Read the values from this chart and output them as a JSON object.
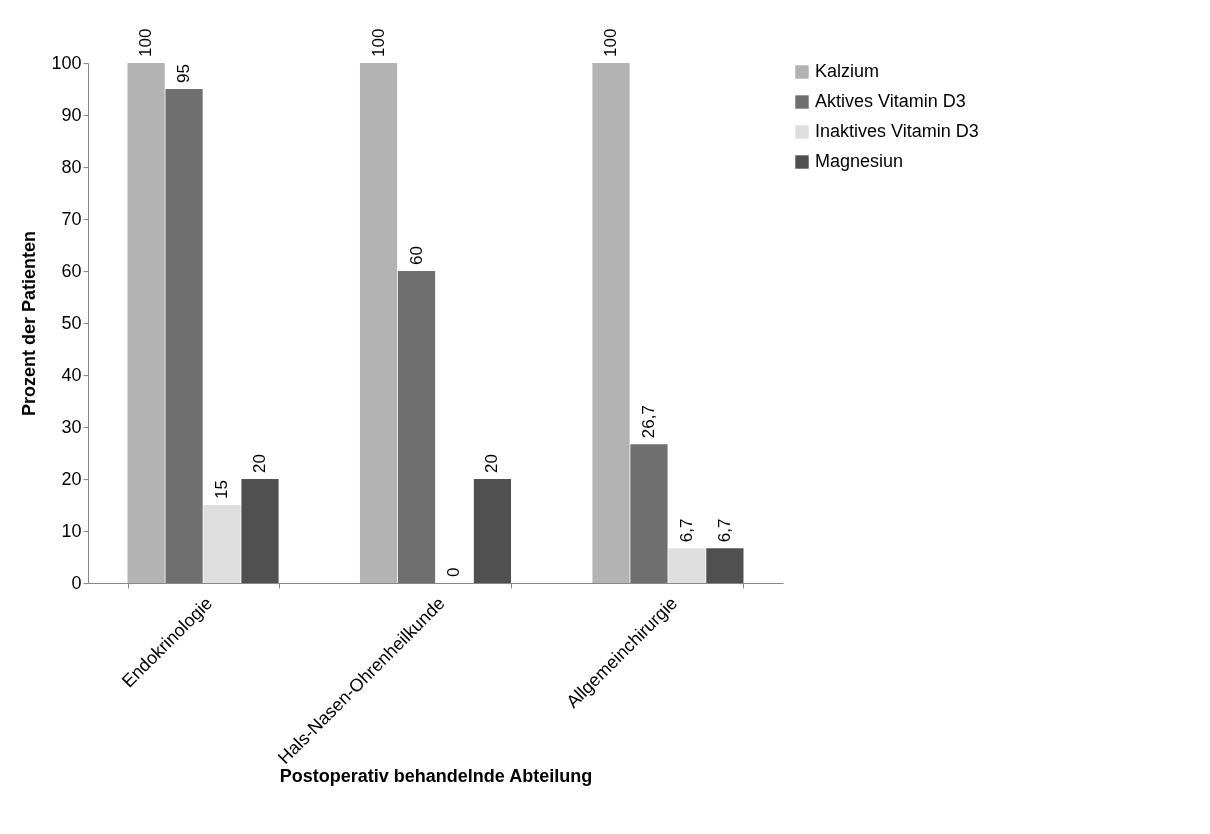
{
  "chart_data": {
    "type": "bar",
    "xlabel": "Postoperativ behandelnde Abteilung",
    "ylabel": "Prozent der Patienten",
    "categories": [
      "Endokrinologie",
      "Hals-Nasen-Ohrenheilkunde",
      "Allgemeinchirurgie"
    ],
    "series": [
      {
        "name": "Kalzium",
        "color": "#b3b3b3",
        "values": [
          100,
          100,
          100
        ],
        "value_labels": [
          "100",
          "100",
          "100"
        ]
      },
      {
        "name": "Aktives Vitamin D3",
        "color": "#6f6f6f",
        "values": [
          95,
          60,
          26.7
        ],
        "value_labels": [
          "95",
          "60",
          "26,7"
        ]
      },
      {
        "name": "Inaktives Vitamin D3",
        "color": "#dedede",
        "values": [
          15,
          0,
          6.7
        ],
        "value_labels": [
          "15",
          "0",
          "6,7"
        ]
      },
      {
        "name": "Magnesiun",
        "color": "#505050",
        "values": [
          20,
          20,
          6.7
        ],
        "value_labels": [
          "20",
          "20",
          "6,7"
        ]
      }
    ],
    "ylim": [
      0,
      100
    ],
    "yticks": [
      0,
      10,
      20,
      30,
      40,
      50,
      60,
      70,
      80,
      90,
      100
    ],
    "grid": false,
    "legend": "right"
  }
}
